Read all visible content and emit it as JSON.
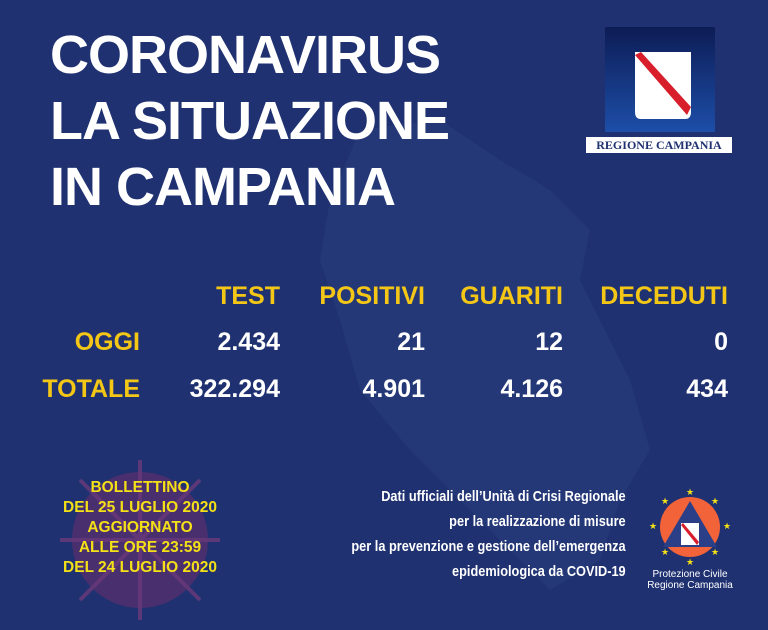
{
  "title": {
    "line1": "CORONAVIRUS",
    "line2": "LA SITUAZIONE",
    "line3": "IN CAMPANIA"
  },
  "logo": {
    "label": "REGIONE CAMPANIA"
  },
  "table": {
    "headers": [
      "TEST",
      "POSITIVI",
      "GUARITI",
      "DECEDUTI"
    ],
    "rows": [
      {
        "label": "OGGI",
        "values": [
          "2.434",
          "21",
          "12",
          "0"
        ]
      },
      {
        "label": "TOTALE",
        "values": [
          "322.294",
          "4.901",
          "4.126",
          "434"
        ]
      }
    ]
  },
  "bulletin": {
    "lines": [
      "BOLLETTINO",
      "DEL 25 LUGLIO 2020",
      "AGGIORNATO",
      "ALLE ORE 23:59",
      "DEL 24 LUGLIO 2020"
    ]
  },
  "info": {
    "lines": [
      "Dati ufficiali dell’Unità di Crisi Regionale",
      "per la realizzazione di misure",
      "per la prevenzione e gestione dell’emergenza",
      "epidemiologica da COVID-19"
    ]
  },
  "protezione": {
    "line1": "Protezione Civile",
    "line2": "Regione Campania"
  },
  "colors": {
    "background": "#1f3170",
    "accent": "#f4c716",
    "text": "#ffffff"
  }
}
